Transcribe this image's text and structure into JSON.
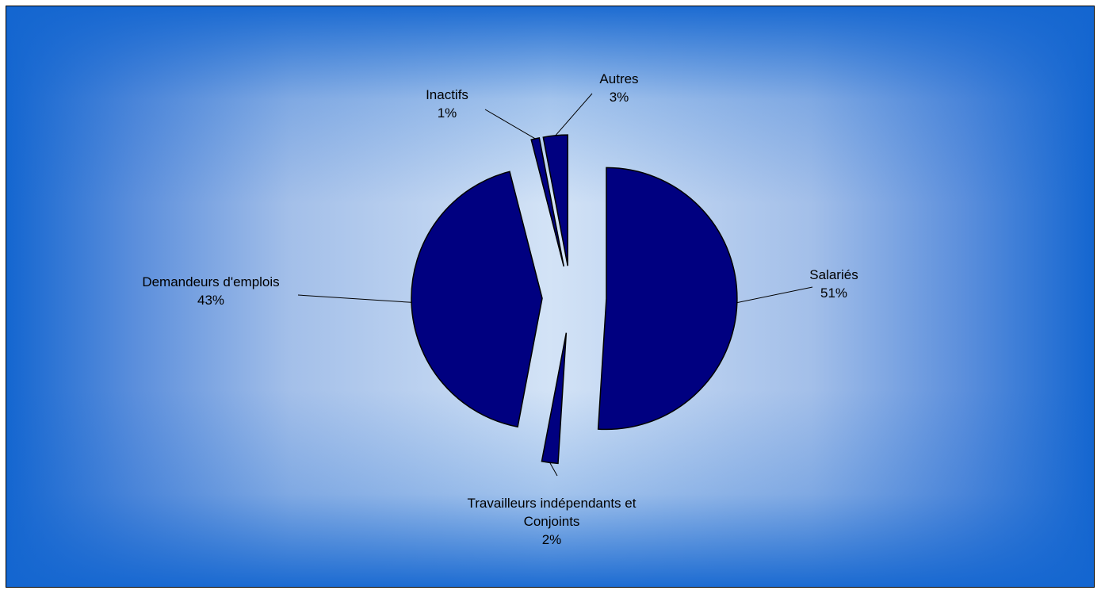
{
  "chart_data": {
    "type": "pie",
    "title": "",
    "exploded": true,
    "slices": [
      {
        "label": "Salariés",
        "value": 51,
        "value_label": "51%"
      },
      {
        "label": "Travailleurs indépendants et Conjoints",
        "label_lines": [
          "Travailleurs indépendants et",
          "Conjoints"
        ],
        "value": 2,
        "value_label": "2%"
      },
      {
        "label": "Demandeurs d'emplois",
        "value": 43,
        "value_label": "43%"
      },
      {
        "label": "Inactifs",
        "value": 1,
        "value_label": "1%"
      },
      {
        "label": "Autres",
        "value": 3,
        "value_label": "3%"
      }
    ],
    "colors": {
      "slice_fill": "#000080",
      "slice_stroke": "#000000",
      "background_edge": "#1466d0",
      "background_center": "#d3e3f6"
    }
  }
}
